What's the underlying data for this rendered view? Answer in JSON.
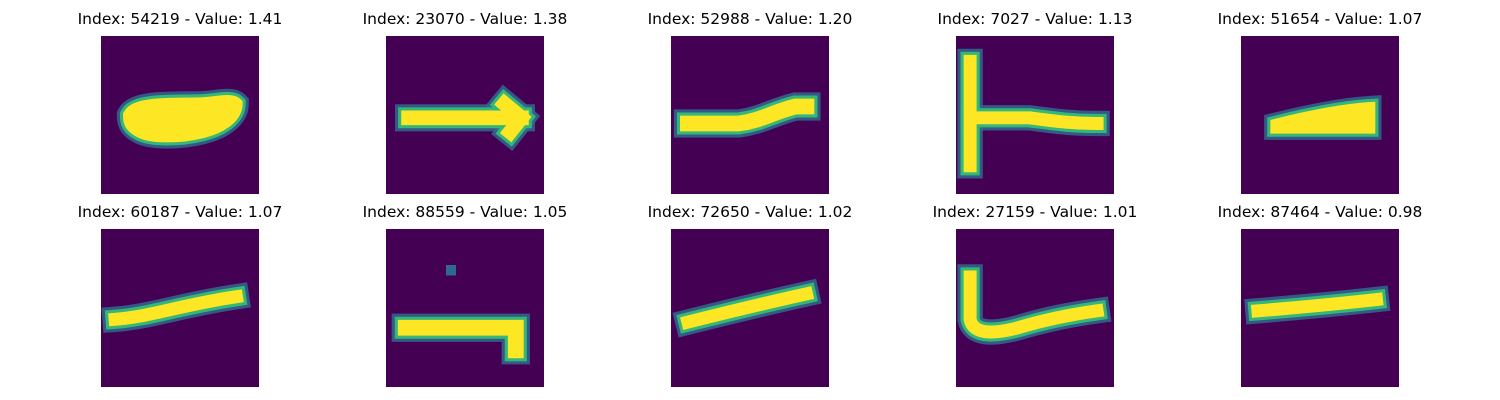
{
  "chart_data": {
    "type": "image_grid",
    "colormap": "viridis",
    "colors": {
      "background": "#440154",
      "low": "#31688e",
      "mid": "#35b779",
      "high": "#fde725"
    },
    "panels": [
      {
        "title": "Index: 54219 - Value: 1.41",
        "index": 54219,
        "value": 1.41,
        "shape": "blob"
      },
      {
        "title": "Index: 23070 - Value: 1.38",
        "index": 23070,
        "value": 1.38,
        "shape": "arrow"
      },
      {
        "title": "Index: 52988 - Value: 1.20",
        "index": 52988,
        "value": 1.2,
        "shape": "bar-up"
      },
      {
        "title": "Index: 7027 - Value: 1.13",
        "index": 7027,
        "value": 1.13,
        "shape": "tee"
      },
      {
        "title": "Index: 51654 - Value: 1.07",
        "index": 51654,
        "value": 1.07,
        "shape": "wedge"
      },
      {
        "title": "Index: 60187 - Value: 1.07",
        "index": 60187,
        "value": 1.07,
        "shape": "slant"
      },
      {
        "title": "Index: 88559 - Value: 1.05",
        "index": 88559,
        "value": 1.05,
        "shape": "bar-dot"
      },
      {
        "title": "Index: 72650 - Value: 1.02",
        "index": 72650,
        "value": 1.02,
        "shape": "slant2"
      },
      {
        "title": "Index: 27159 - Value: 1.01",
        "index": 27159,
        "value": 1.01,
        "shape": "ell"
      },
      {
        "title": "Index: 87464 - Value: 0.98",
        "index": 87464,
        "value": 0.98,
        "shape": "dash"
      }
    ]
  }
}
